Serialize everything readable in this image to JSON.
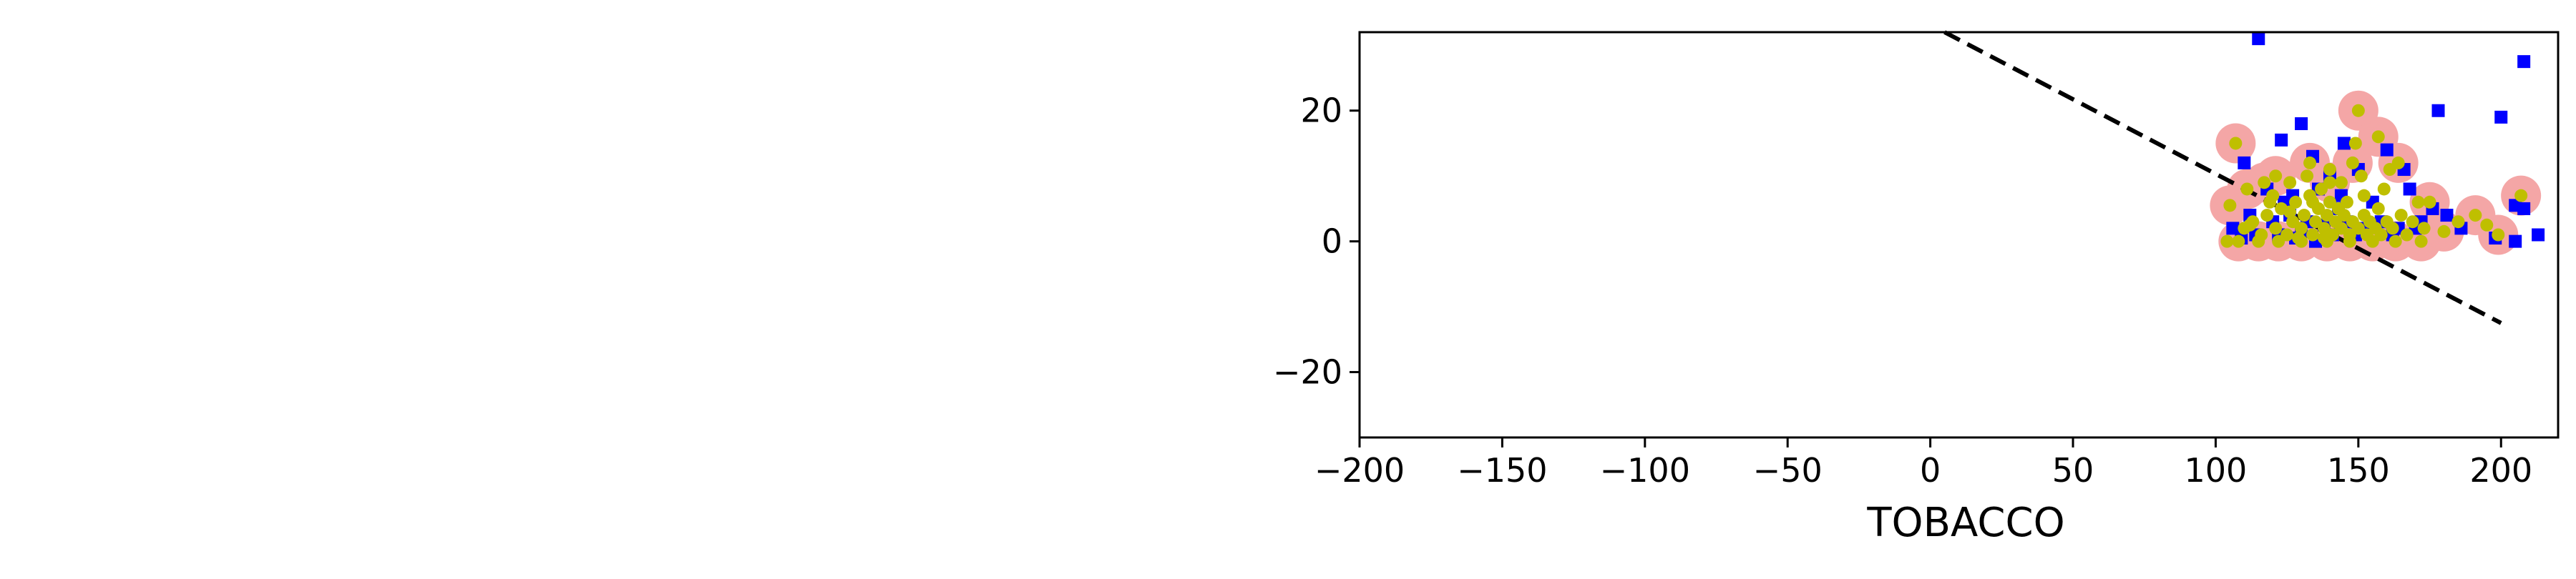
{
  "chart_data": {
    "type": "scatter",
    "title": "",
    "xlabel": "TOBACCO",
    "ylabel": "",
    "xlim": [
      -200,
      220
    ],
    "ylim": [
      -30,
      32
    ],
    "x_ticks": [
      -200,
      -150,
      -100,
      -50,
      0,
      50,
      100,
      150,
      200
    ],
    "x_tick_labels": [
      "−200",
      "−150",
      "−100",
      "−50",
      "0",
      "50",
      "100",
      "150",
      "200"
    ],
    "y_ticks": [
      20,
      0,
      -20
    ],
    "y_tick_labels": [
      "20",
      "0",
      "−20"
    ],
    "grid": false,
    "colors": {
      "blue_squares": "#0000ff",
      "yellow_dots": "#bfbf00",
      "pink_halos": "#f4a6a6",
      "fit_line": "#000000"
    },
    "series": [
      {
        "marker": "square",
        "color": "#0000ff",
        "points": [
          [
            115,
            31
          ],
          [
            208,
            27.5
          ],
          [
            130,
            18
          ],
          [
            178,
            20
          ],
          [
            200,
            19
          ],
          [
            123,
            15.5
          ],
          [
            145,
            15
          ],
          [
            134,
            13
          ],
          [
            110,
            12
          ],
          [
            160,
            14
          ],
          [
            140,
            10
          ],
          [
            150,
            11
          ],
          [
            166,
            11
          ],
          [
            118,
            8
          ],
          [
            127,
            7
          ],
          [
            136,
            8
          ],
          [
            144,
            7
          ],
          [
            155,
            6
          ],
          [
            168,
            8
          ],
          [
            176,
            5
          ],
          [
            181,
            4
          ],
          [
            205,
            5.5
          ],
          [
            208,
            5
          ],
          [
            112,
            4
          ],
          [
            120,
            3
          ],
          [
            126,
            4
          ],
          [
            132,
            3
          ],
          [
            138,
            2.5
          ],
          [
            146,
            3
          ],
          [
            152,
            2
          ],
          [
            158,
            3
          ],
          [
            164,
            2
          ],
          [
            172,
            3
          ],
          [
            186,
            2
          ],
          [
            106,
            2
          ],
          [
            114,
            1
          ],
          [
            122,
            1
          ],
          [
            130,
            1.5
          ],
          [
            141,
            1
          ],
          [
            149,
            1
          ],
          [
            162,
            1
          ],
          [
            170,
            2
          ],
          [
            198,
            0.5
          ],
          [
            205,
            0
          ],
          [
            213,
            1
          ],
          [
            128,
            0.5
          ],
          [
            135,
            0
          ],
          [
            109,
            0.5
          ],
          [
            124,
            6
          ],
          [
            143,
            5
          ]
        ]
      },
      {
        "marker": "circle-halo",
        "color": "#bfbf00",
        "halo_color": "#f4a6a6",
        "points": [
          [
            150,
            20
          ],
          [
            107,
            15
          ],
          [
            157,
            16
          ],
          [
            164,
            12
          ],
          [
            148,
            12
          ],
          [
            133,
            12
          ],
          [
            140,
            9
          ],
          [
            175,
            6
          ],
          [
            191,
            4
          ],
          [
            207,
            7
          ],
          [
            199,
            1
          ],
          [
            180,
            1.5
          ],
          [
            105,
            5.5
          ],
          [
            111,
            8
          ],
          [
            117,
            9
          ],
          [
            121,
            10
          ],
          [
            108,
            0
          ],
          [
            115,
            0
          ],
          [
            122,
            0
          ],
          [
            130,
            0
          ],
          [
            139,
            0
          ],
          [
            147,
            0
          ],
          [
            155,
            0
          ],
          [
            163,
            0
          ],
          [
            172,
            0
          ]
        ]
      },
      {
        "marker": "circle",
        "color": "#bfbf00",
        "points": [
          [
            104,
            0
          ],
          [
            110,
            2
          ],
          [
            113,
            3
          ],
          [
            116,
            1
          ],
          [
            118,
            4
          ],
          [
            121,
            2
          ],
          [
            123,
            5
          ],
          [
            125,
            1
          ],
          [
            127,
            3
          ],
          [
            128,
            6
          ],
          [
            130,
            2
          ],
          [
            131,
            4
          ],
          [
            133,
            7
          ],
          [
            134,
            1
          ],
          [
            135,
            3
          ],
          [
            136,
            5
          ],
          [
            137,
            8
          ],
          [
            138,
            2
          ],
          [
            139,
            4
          ],
          [
            140,
            6
          ],
          [
            141,
            1
          ],
          [
            142,
            3
          ],
          [
            143,
            5
          ],
          [
            144,
            2
          ],
          [
            145,
            4
          ],
          [
            146,
            6
          ],
          [
            147,
            1
          ],
          [
            148,
            3
          ],
          [
            149,
            15
          ],
          [
            150,
            2
          ],
          [
            151,
            10
          ],
          [
            152,
            4
          ],
          [
            153,
            1
          ],
          [
            154,
            3
          ],
          [
            156,
            2
          ],
          [
            157,
            5
          ],
          [
            158,
            1
          ],
          [
            159,
            8
          ],
          [
            160,
            3
          ],
          [
            161,
            11
          ],
          [
            162,
            2
          ],
          [
            165,
            4
          ],
          [
            167,
            1
          ],
          [
            169,
            3
          ],
          [
            171,
            6
          ],
          [
            173,
            2
          ],
          [
            120,
            7
          ],
          [
            126,
            9
          ],
          [
            132,
            10
          ],
          [
            144,
            9
          ],
          [
            119,
            6
          ],
          [
            112,
            2.5
          ],
          [
            129,
            0.5
          ],
          [
            138,
            0.5
          ],
          [
            185,
            3
          ],
          [
            195,
            2.5
          ],
          [
            140,
            11
          ],
          [
            126,
            4.5
          ],
          [
            134,
            6
          ],
          [
            152,
            7
          ]
        ]
      },
      {
        "marker": "dashed-line",
        "color": "#000000",
        "points": [
          [
            5,
            32
          ],
          [
            200,
            -12.5
          ]
        ]
      }
    ]
  }
}
